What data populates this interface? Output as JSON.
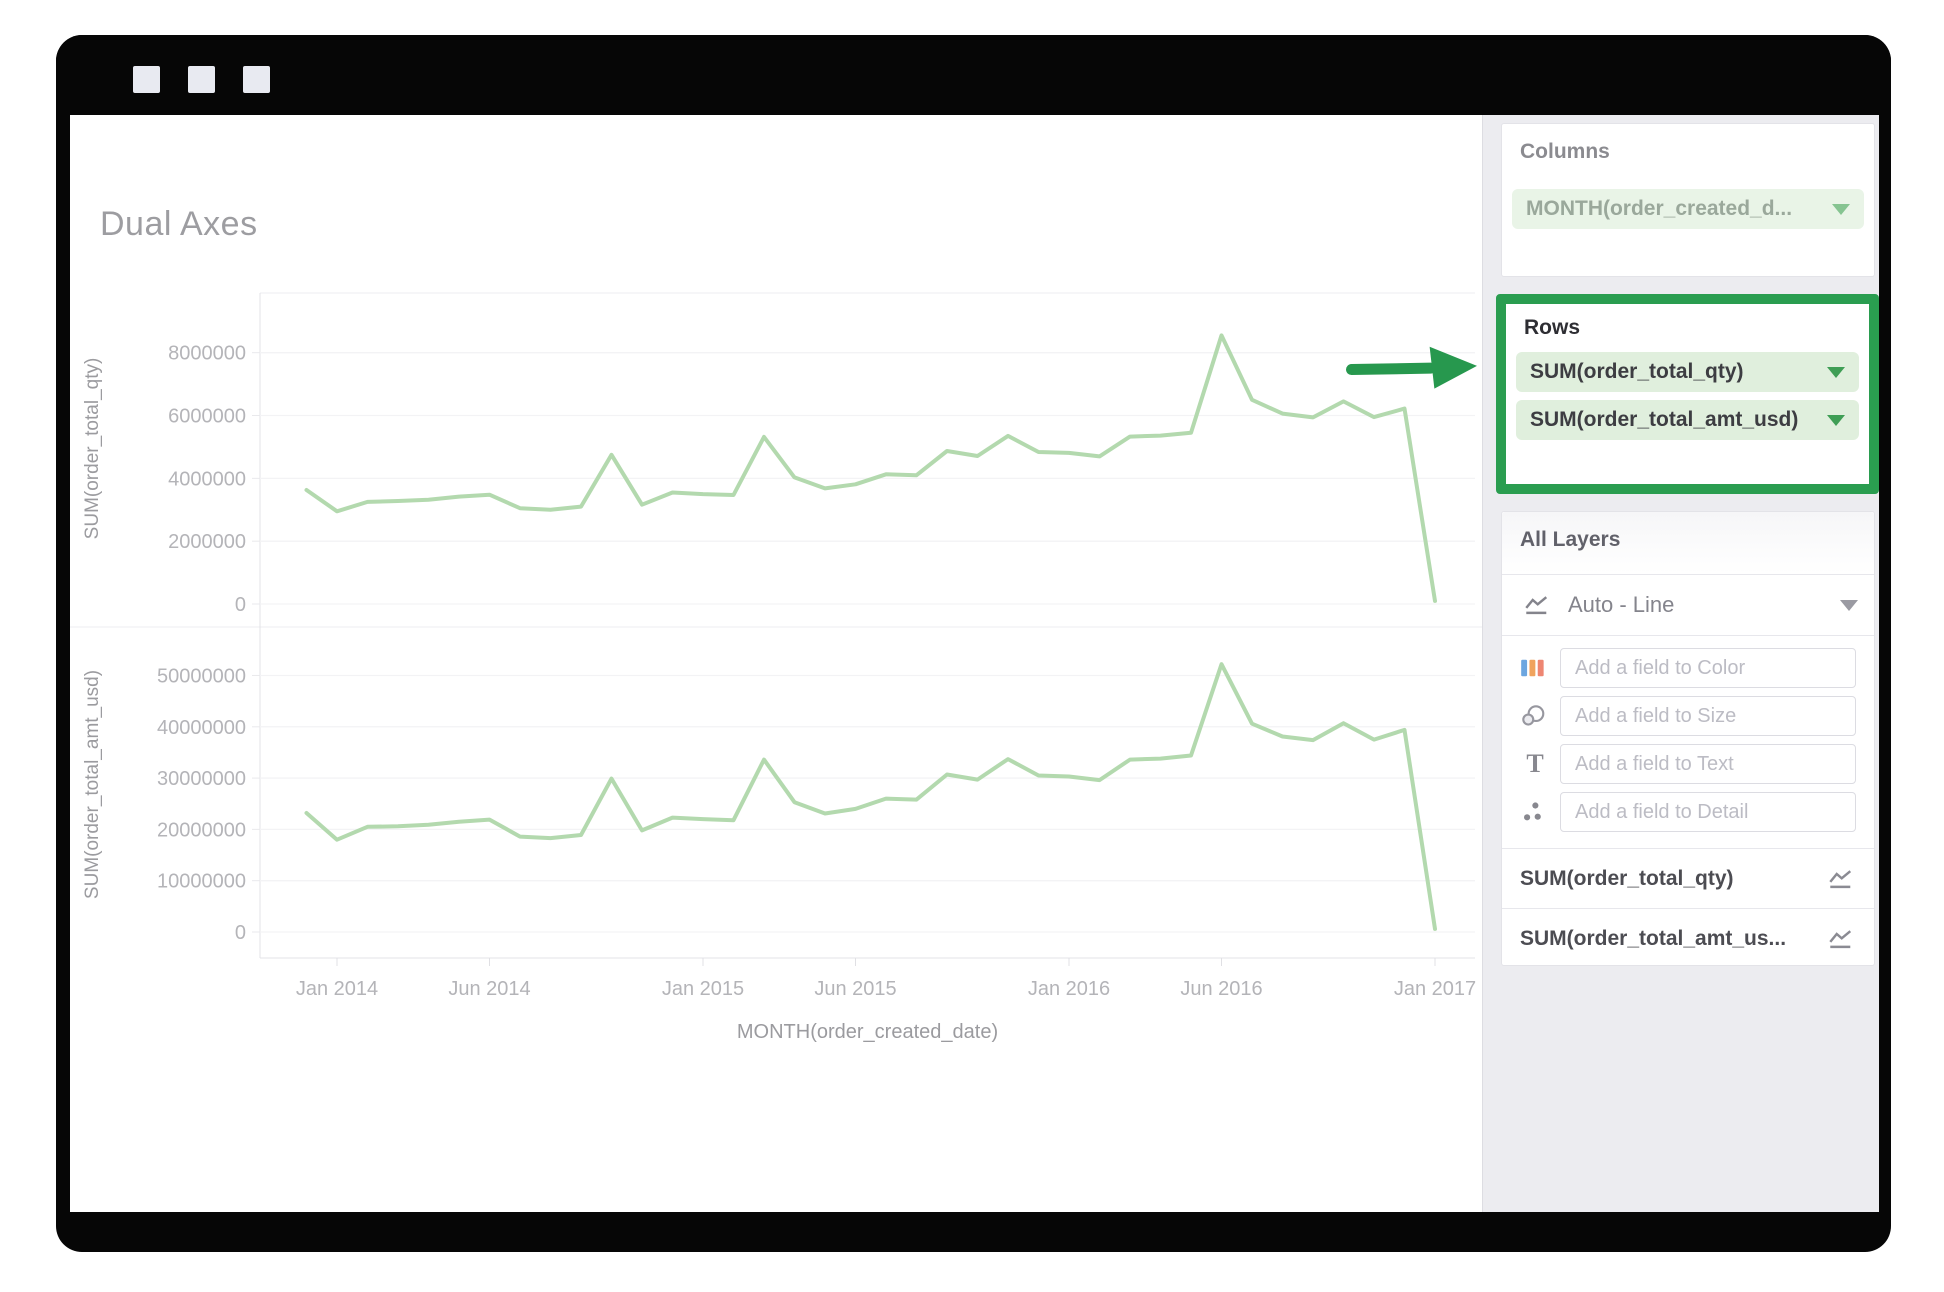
{
  "window": {
    "buttons": [
      "window-button-1",
      "window-button-2",
      "window-button-3"
    ]
  },
  "main": {
    "title": "Dual Axes"
  },
  "sidebar": {
    "columns": {
      "label": "Columns",
      "pill": "MONTH(order_created_d...",
      "pill_caret_icon": "chevron-down-icon"
    },
    "rows": {
      "label": "Rows",
      "highlight_color": "#2a9d50",
      "pills": [
        "SUM(order_total_qty)",
        "SUM(order_total_amt_usd)"
      ]
    },
    "layers": {
      "label": "All Layers",
      "mark_type": "Auto - Line",
      "mark_type_icon": "line-chart-icon",
      "fields": [
        {
          "icon": "color-bars-icon",
          "placeholder": "Add a field to Color"
        },
        {
          "icon": "size-circles-icon",
          "placeholder": "Add a field to Size"
        },
        {
          "icon": "text-T-icon",
          "placeholder": "Add a field to Text"
        },
        {
          "icon": "detail-dots-icon",
          "placeholder": "Add a field to Detail"
        }
      ],
      "layer_list": [
        {
          "label": "SUM(order_total_qty)",
          "icon": "line-chart-icon"
        },
        {
          "label": "SUM(order_total_amt_us...",
          "icon": "line-chart-icon"
        }
      ]
    }
  },
  "annotation": {
    "arrow_color": "#27984e",
    "arrow_points_to": "Rows"
  },
  "chart_data": [
    {
      "type": "line",
      "title": "",
      "ylabel": "SUM(order_total_qty)",
      "line_color": "#afd7aa",
      "yticks": [
        0,
        2000000,
        4000000,
        6000000,
        8000000
      ],
      "ylim": [
        0,
        9900000
      ],
      "grid": true,
      "x": [
        "Dec 2013",
        "Jan 2014",
        "Feb 2014",
        "Mar 2014",
        "Apr 2014",
        "May 2014",
        "Jun 2014",
        "Jul 2014",
        "Aug 2014",
        "Sep 2014",
        "Oct 2014",
        "Nov 2014",
        "Dec 2014",
        "Jan 2015",
        "Feb 2015",
        "Mar 2015",
        "Apr 2015",
        "May 2015",
        "Jun 2015",
        "Jul 2015",
        "Aug 2015",
        "Sep 2015",
        "Oct 2015",
        "Nov 2015",
        "Dec 2015",
        "Jan 2016",
        "Feb 2016",
        "Mar 2016",
        "Apr 2016",
        "May 2016",
        "Jun 2016",
        "Jul 2016",
        "Aug 2016",
        "Sep 2016",
        "Oct 2016",
        "Nov 2016",
        "Dec 2016",
        "Jan 2017"
      ],
      "values": [
        3630000,
        2950000,
        3250000,
        3280000,
        3320000,
        3420000,
        3480000,
        3050000,
        3000000,
        3100000,
        4750000,
        3160000,
        3550000,
        3500000,
        3470000,
        5320000,
        4030000,
        3680000,
        3810000,
        4130000,
        4100000,
        4870000,
        4710000,
        5350000,
        4840000,
        4810000,
        4700000,
        5330000,
        5360000,
        5450000,
        8550000,
        6500000,
        6060000,
        5940000,
        6450000,
        5950000,
        6220000,
        100000
      ]
    },
    {
      "type": "line",
      "title": "",
      "ylabel": "SUM(order_total_amt_usd)",
      "line_color": "#afd7aa",
      "yticks": [
        0,
        10000000,
        20000000,
        30000000,
        40000000,
        50000000
      ],
      "ylim": [
        0,
        57500000
      ],
      "grid": true,
      "x": [
        "Dec 2013",
        "Jan 2014",
        "Feb 2014",
        "Mar 2014",
        "Apr 2014",
        "May 2014",
        "Jun 2014",
        "Jul 2014",
        "Aug 2014",
        "Sep 2014",
        "Oct 2014",
        "Nov 2014",
        "Dec 2014",
        "Jan 2015",
        "Feb 2015",
        "Mar 2015",
        "Apr 2015",
        "May 2015",
        "Jun 2015",
        "Jul 2015",
        "Aug 2015",
        "Sep 2015",
        "Oct 2015",
        "Nov 2015",
        "Dec 2015",
        "Jan 2016",
        "Feb 2016",
        "Mar 2016",
        "Apr 2016",
        "May 2016",
        "Jun 2016",
        "Jul 2016",
        "Aug 2016",
        "Sep 2016",
        "Oct 2016",
        "Nov 2016",
        "Dec 2016",
        "Jan 2017"
      ],
      "values": [
        23200000,
        18000000,
        20500000,
        20600000,
        20900000,
        21500000,
        21900000,
        18600000,
        18300000,
        18900000,
        29900000,
        19800000,
        22300000,
        22000000,
        21800000,
        33600000,
        25300000,
        23100000,
        24000000,
        26000000,
        25800000,
        30700000,
        29700000,
        33700000,
        30500000,
        30300000,
        29600000,
        33600000,
        33800000,
        34400000,
        52200000,
        40600000,
        38100000,
        37400000,
        40700000,
        37500000,
        39400000,
        600000
      ]
    }
  ],
  "x_axis": {
    "xlabel": "MONTH(order_created_date)",
    "tick_labels": [
      "Jan 2014",
      "Jun 2014",
      "Jan 2015",
      "Jun 2015",
      "Jan 2016",
      "Jun 2016",
      "Jan 2017"
    ],
    "tick_month_indices": [
      1,
      6,
      13,
      18,
      25,
      30,
      37
    ]
  }
}
